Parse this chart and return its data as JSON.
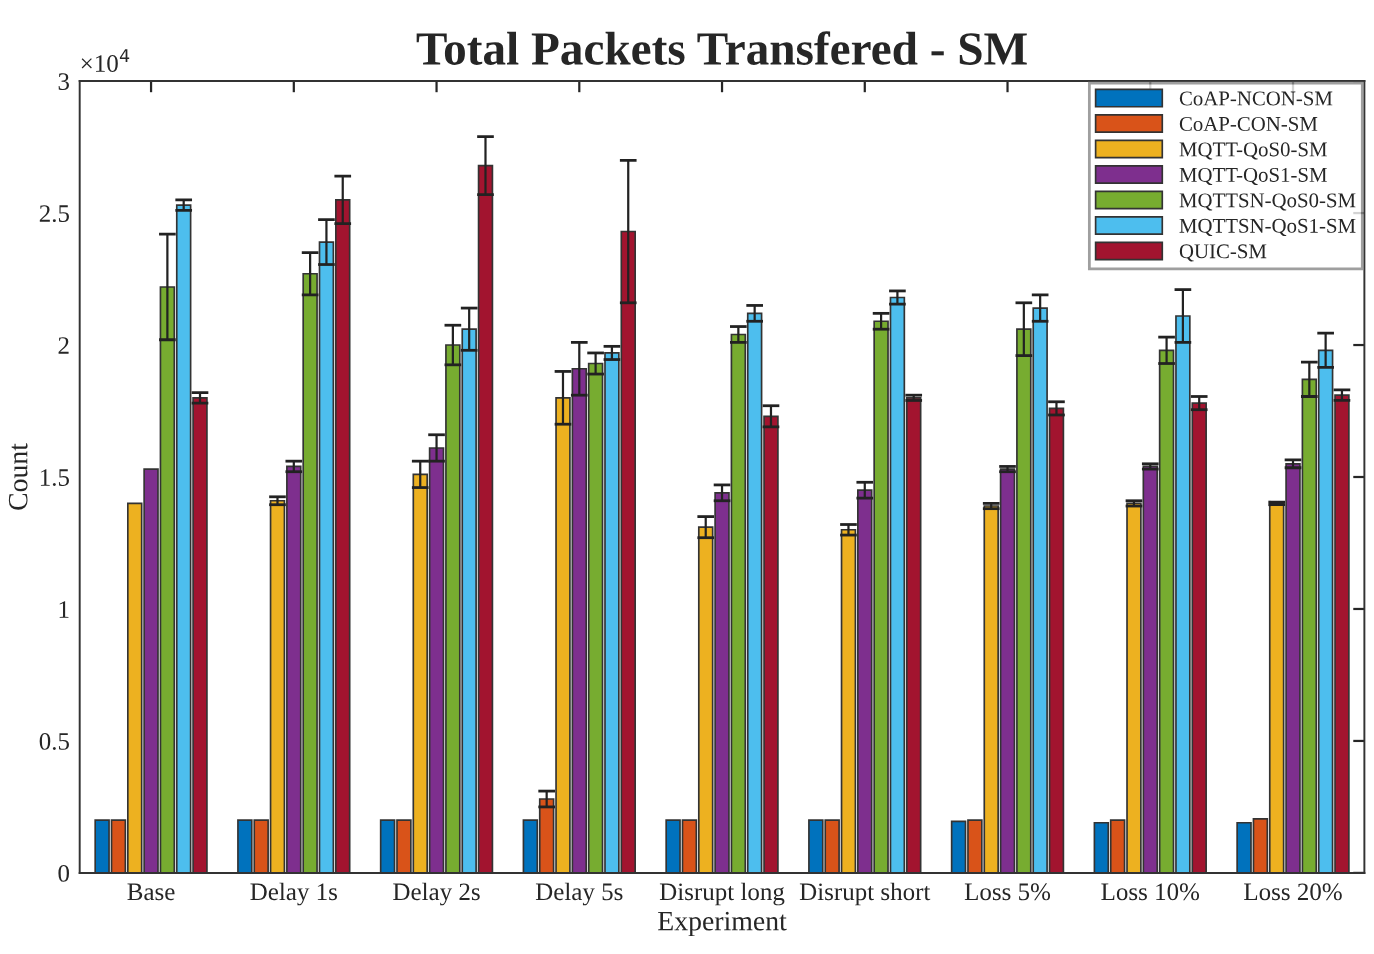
{
  "chart_data": {
    "type": "bar",
    "title": "Total Packets Transfered - SM",
    "xlabel": "Experiment",
    "ylabel": "Count",
    "categories": [
      "Base",
      "Delay 1s",
      "Delay 2s",
      "Delay 5s",
      "Disrupt long",
      "Disrupt short",
      "Loss 5%",
      "Loss 10%",
      "Loss 20%"
    ],
    "series": [
      {
        "name": "CoAP-NCON-SM",
        "color": "#0072bd",
        "values": [
          0.2,
          0.2,
          0.2,
          0.2,
          0.2,
          0.2,
          0.195,
          0.19,
          0.19
        ],
        "errors": [
          null,
          null,
          null,
          null,
          null,
          null,
          null,
          null,
          null
        ]
      },
      {
        "name": "CoAP-CON-SM",
        "color": "#d95319",
        "values": [
          0.2,
          0.2,
          0.2,
          0.28,
          0.2,
          0.2,
          0.2,
          0.2,
          0.205
        ],
        "errors": [
          null,
          null,
          null,
          0.03,
          null,
          null,
          null,
          null,
          null
        ]
      },
      {
        "name": "MQTT-QoS0-SM",
        "color": "#edb120",
        "values": [
          1.4,
          1.41,
          1.51,
          1.8,
          1.31,
          1.3,
          1.39,
          1.4,
          1.4
        ],
        "errors": [
          null,
          0.015,
          0.05,
          0.1,
          0.04,
          0.02,
          0.01,
          0.01,
          0.005
        ]
      },
      {
        "name": "MQTT-QoS1-SM",
        "color": "#7e2f8e",
        "values": [
          1.53,
          1.54,
          1.61,
          1.91,
          1.44,
          1.45,
          1.53,
          1.54,
          1.55
        ],
        "errors": [
          null,
          0.02,
          0.05,
          0.1,
          0.03,
          0.03,
          0.01,
          0.01,
          0.015
        ]
      },
      {
        "name": "MQTTSN-QoS0-SM",
        "color": "#77ac30",
        "values": [
          2.22,
          2.27,
          2.0,
          1.93,
          2.04,
          2.09,
          2.06,
          1.98,
          1.87
        ],
        "errors": [
          0.2,
          0.08,
          0.075,
          0.04,
          0.03,
          0.03,
          0.1,
          0.05,
          0.065
        ]
      },
      {
        "name": "MQTTSN-QoS1-SM",
        "color": "#4dbeee",
        "values": [
          2.53,
          2.39,
          2.06,
          1.97,
          2.12,
          2.18,
          2.14,
          2.11,
          1.98
        ],
        "errors": [
          0.02,
          0.085,
          0.08,
          0.025,
          0.03,
          0.025,
          0.05,
          0.1,
          0.065
        ]
      },
      {
        "name": "QUIC-SM",
        "color": "#a2142f",
        "values": [
          1.8,
          2.55,
          2.68,
          2.43,
          1.73,
          1.8,
          1.76,
          1.78,
          1.81
        ],
        "errors": [
          0.02,
          0.09,
          0.11,
          0.27,
          0.04,
          0.01,
          0.025,
          0.025,
          0.02
        ]
      }
    ],
    "ylim": [
      0,
      3
    ],
    "yticks": [
      0,
      0.5,
      1,
      1.5,
      2,
      2.5,
      3
    ],
    "annotations": [
      "×10$^{4}$"
    ],
    "legend": "top right",
    "grid": false
  }
}
